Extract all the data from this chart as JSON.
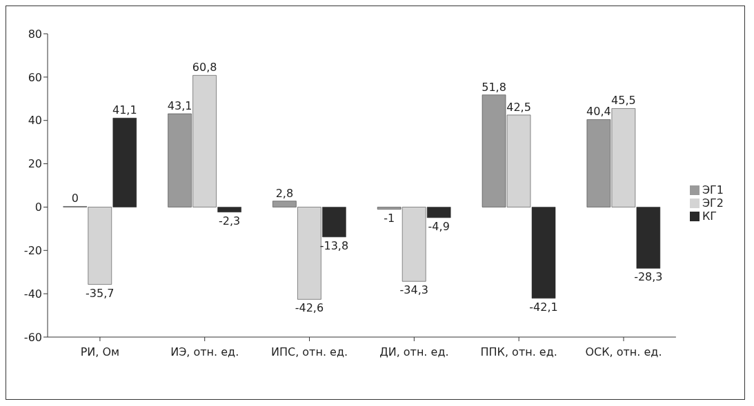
{
  "chart_data": {
    "type": "bar",
    "categories": [
      "РИ, Ом",
      "ИЭ, отн. ед.",
      "ИПС, отн. ед.",
      "ДИ, отн. ед.",
      "ППК, отн. ед.",
      "ОСК, отн. ед."
    ],
    "series": [
      {
        "name": "ЭГ1",
        "color": "#9a9a9a",
        "values": [
          0,
          43.1,
          2.8,
          -1,
          51.8,
          40.4
        ],
        "value_labels": [
          "0",
          "43,1",
          "2,8",
          "-1",
          "51,8",
          "40,4"
        ]
      },
      {
        "name": "ЭГ2",
        "color": "#d4d4d4",
        "values": [
          -35.7,
          60.8,
          -42.6,
          -34.3,
          42.5,
          45.5
        ],
        "value_labels": [
          "-35,7",
          "60,8",
          "-42,6",
          "-34,3",
          "42,5",
          "45,5"
        ]
      },
      {
        "name": "КГ",
        "color": "#2a2a2a",
        "values": [
          41.1,
          -2.3,
          -13.8,
          -4.9,
          -42.1,
          -28.3
        ],
        "value_labels": [
          "41,1",
          "-2,3",
          "-13,8",
          "-4,9",
          "-42,1",
          "-28,3"
        ]
      }
    ],
    "ylim": [
      -60,
      80
    ],
    "yticks": [
      -60,
      -40,
      -20,
      0,
      20,
      40,
      60,
      80
    ],
    "legend": "right"
  }
}
